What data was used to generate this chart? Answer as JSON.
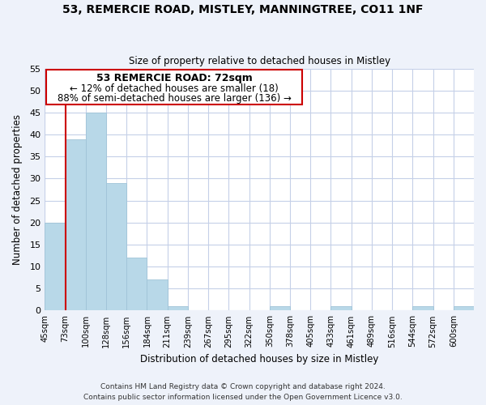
{
  "title_line1": "53, REMERCIE ROAD, MISTLEY, MANNINGTREE, CO11 1NF",
  "title_line2": "Size of property relative to detached houses in Mistley",
  "xlabel": "Distribution of detached houses by size in Mistley",
  "ylabel": "Number of detached properties",
  "bin_labels": [
    "45sqm",
    "73sqm",
    "100sqm",
    "128sqm",
    "156sqm",
    "184sqm",
    "211sqm",
    "239sqm",
    "267sqm",
    "295sqm",
    "322sqm",
    "350sqm",
    "378sqm",
    "405sqm",
    "433sqm",
    "461sqm",
    "489sqm",
    "516sqm",
    "544sqm",
    "572sqm",
    "600sqm"
  ],
  "bar_heights": [
    20,
    39,
    45,
    29,
    12,
    7,
    1,
    0,
    0,
    0,
    0,
    1,
    0,
    0,
    1,
    0,
    0,
    0,
    1,
    0,
    1
  ],
  "bar_color": "#b8d8e8",
  "bar_edge_color": "#a0c4d8",
  "vline_x": 1.0,
  "vline_color": "#cc0000",
  "annotation_title": "53 REMERCIE ROAD: 72sqm",
  "annotation_line1": "← 12% of detached houses are smaller (18)",
  "annotation_line2": "88% of semi-detached houses are larger (136) →",
  "annotation_box_color": "#ffffff",
  "annotation_box_edge": "#cc0000",
  "ylim": [
    0,
    55
  ],
  "yticks": [
    0,
    5,
    10,
    15,
    20,
    25,
    30,
    35,
    40,
    45,
    50,
    55
  ],
  "footer_line1": "Contains HM Land Registry data © Crown copyright and database right 2024.",
  "footer_line2": "Contains public sector information licensed under the Open Government Licence v3.0.",
  "bg_color": "#eef2fa",
  "plot_bg_color": "#ffffff",
  "grid_color": "#c5d0e8"
}
